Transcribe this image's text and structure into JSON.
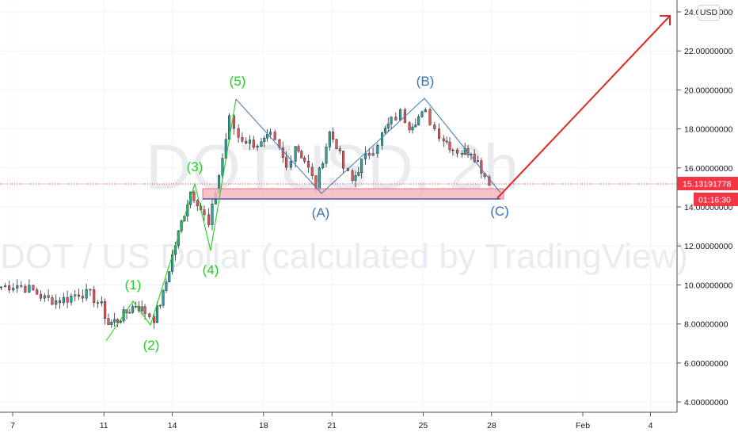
{
  "watermark": {
    "symbol": "DOTUSD, 2h",
    "description": "DOT / US Dollar (calculated by TradingView)"
  },
  "price_scale": {
    "currency_badge": "USD",
    "labels": [
      "24.00000000",
      "22.00000000",
      "20.00000000",
      "18.00000000",
      "16.00000000",
      "14.00000000",
      "12.00000000",
      "10.00000000",
      "8.00000000",
      "6.00000000",
      "4.00000000"
    ],
    "current_price": "15.13191778",
    "countdown": "01:16:30"
  },
  "time_scale": {
    "labels": [
      "7",
      "11",
      "14",
      "18",
      "21",
      "25",
      "28",
      "Feb",
      "4"
    ]
  },
  "wave_labels": {
    "impulse": [
      "(1)",
      "(2)",
      "(3)",
      "(4)",
      "(5)"
    ],
    "correction": [
      "(A)",
      "(B)",
      "(C)"
    ]
  },
  "colors": {
    "candle_up": "#26a69a",
    "candle_down": "#ef5350",
    "candle_neutral": "#2a2e39",
    "impulse_wave": "#22d022",
    "corrective_wave": "#3b73b5",
    "projection_arrow": "#e02a2a",
    "support_zone": "#f4b6bd",
    "price_tag": "#f23645"
  },
  "chart_data": {
    "type": "candlestick",
    "symbol": "DOTUSD",
    "interval": "2h",
    "ylim": [
      3.5,
      24.5
    ],
    "last_price": 15.13191778,
    "support_zone": [
      14.4,
      15.0
    ],
    "elliott_waves": {
      "impulse": [
        {
          "label": "(1)",
          "price": 9.1
        },
        {
          "label": "(2)",
          "price": 7.9
        },
        {
          "label": "(3)",
          "price": 15.0
        },
        {
          "label": "(4)",
          "price": 11.6
        },
        {
          "label": "(5)",
          "price": 19.4
        }
      ],
      "correction": [
        {
          "label": "(A)",
          "price": 14.6
        },
        {
          "label": "(B)",
          "price": 19.5
        },
        {
          "label": "(C)",
          "price": 14.7
        }
      ]
    },
    "projection_target": 23.9,
    "close_path": [
      {
        "day": 6.5,
        "close": 9.9
      },
      {
        "day": 7.2,
        "close": 10.0
      },
      {
        "day": 7.9,
        "close": 9.7
      },
      {
        "day": 8.4,
        "close": 9.3
      },
      {
        "day": 8.9,
        "close": 9.2
      },
      {
        "day": 9.4,
        "close": 9.3
      },
      {
        "day": 9.9,
        "close": 9.6
      },
      {
        "day": 10.4,
        "close": 9.5
      },
      {
        "day": 10.9,
        "close": 8.9
      },
      {
        "day": 11.2,
        "close": 8.0
      },
      {
        "day": 11.6,
        "close": 8.2
      },
      {
        "day": 12.0,
        "close": 8.6
      },
      {
        "day": 12.4,
        "close": 9.0
      },
      {
        "day": 12.8,
        "close": 8.6
      },
      {
        "day": 13.2,
        "close": 8.3
      },
      {
        "day": 13.6,
        "close": 9.5
      },
      {
        "day": 14.0,
        "close": 11.5
      },
      {
        "day": 14.4,
        "close": 13.2
      },
      {
        "day": 14.8,
        "close": 14.8
      },
      {
        "day": 15.1,
        "close": 14.3
      },
      {
        "day": 15.4,
        "close": 13.5
      },
      {
        "day": 15.6,
        "close": 13.0
      },
      {
        "day": 15.9,
        "close": 14.8
      },
      {
        "day": 16.2,
        "close": 16.5
      },
      {
        "day": 16.5,
        "close": 18.5
      },
      {
        "day": 16.9,
        "close": 17.6
      },
      {
        "day": 17.4,
        "close": 17.3
      },
      {
        "day": 17.9,
        "close": 17.2
      },
      {
        "day": 18.3,
        "close": 17.6
      },
      {
        "day": 18.7,
        "close": 16.9
      },
      {
        "day": 19.0,
        "close": 16.0
      },
      {
        "day": 19.4,
        "close": 17.2
      },
      {
        "day": 19.8,
        "close": 16.4
      },
      {
        "day": 20.3,
        "close": 15.0
      },
      {
        "day": 20.6,
        "close": 16.5
      },
      {
        "day": 20.9,
        "close": 17.8
      },
      {
        "day": 21.2,
        "close": 17.2
      },
      {
        "day": 21.5,
        "close": 16.0
      },
      {
        "day": 21.9,
        "close": 15.3
      },
      {
        "day": 22.3,
        "close": 16.3
      },
      {
        "day": 22.8,
        "close": 17.0
      },
      {
        "day": 23.2,
        "close": 17.7
      },
      {
        "day": 23.6,
        "close": 18.4
      },
      {
        "day": 24.0,
        "close": 18.8
      },
      {
        "day": 24.4,
        "close": 18.2
      },
      {
        "day": 24.8,
        "close": 18.6
      },
      {
        "day": 25.1,
        "close": 18.8
      },
      {
        "day": 25.5,
        "close": 18.0
      },
      {
        "day": 25.9,
        "close": 17.5
      },
      {
        "day": 26.3,
        "close": 17.0
      },
      {
        "day": 26.7,
        "close": 16.8
      },
      {
        "day": 27.1,
        "close": 16.9
      },
      {
        "day": 27.4,
        "close": 16.3
      },
      {
        "day": 27.7,
        "close": 15.6
      },
      {
        "day": 27.9,
        "close": 15.1
      }
    ]
  }
}
